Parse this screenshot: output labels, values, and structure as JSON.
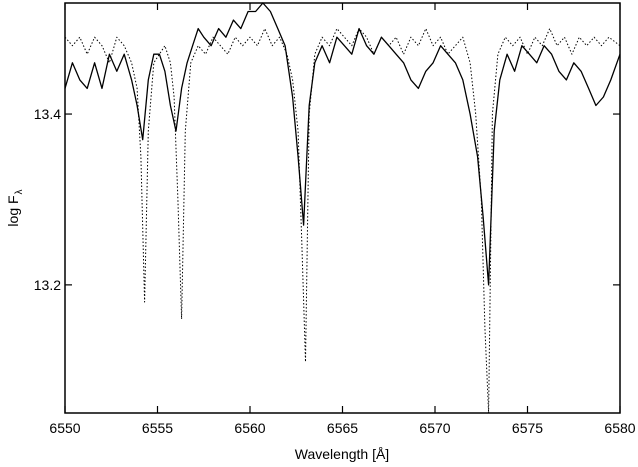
{
  "chart_data": {
    "type": "line",
    "title": "",
    "xlabel": "Wavelength [Å]",
    "ylabel_main": "log F",
    "ylabel_sub": "λ",
    "xlim": [
      6550,
      6580
    ],
    "ylim": [
      13.05,
      13.53
    ],
    "xticks": [
      6550,
      6555,
      6560,
      6565,
      6570,
      6575,
      6580
    ],
    "xtick_labels": [
      "6550",
      "6555",
      "6560",
      "6565",
      "6570",
      "6575",
      "6580"
    ],
    "yticks": [
      13.2,
      13.4
    ],
    "ytick_labels": [
      "13.2",
      "13.4"
    ],
    "grid": false,
    "legend": "none",
    "series": [
      {
        "style": "solid",
        "color": "#000000",
        "x": [
          6550.0,
          6550.4,
          6550.8,
          6551.2,
          6551.6,
          6552.0,
          6552.4,
          6552.8,
          6553.2,
          6553.6,
          6553.9,
          6554.2,
          6554.5,
          6554.8,
          6555.1,
          6555.4,
          6555.7,
          6556.0,
          6556.3,
          6556.6,
          6556.9,
          6557.2,
          6557.5,
          6557.9,
          6558.3,
          6558.7,
          6559.1,
          6559.5,
          6559.9,
          6560.3,
          6560.7,
          6561.1,
          6561.5,
          6561.9,
          6562.3,
          6562.6,
          6562.9,
          6563.2,
          6563.5,
          6563.9,
          6564.3,
          6564.7,
          6565.1,
          6565.5,
          6565.9,
          6566.3,
          6566.7,
          6567.1,
          6567.5,
          6567.9,
          6568.3,
          6568.7,
          6569.1,
          6569.5,
          6569.9,
          6570.3,
          6570.7,
          6571.1,
          6571.5,
          6571.9,
          6572.3,
          6572.6,
          6572.9,
          6573.2,
          6573.5,
          6573.9,
          6574.3,
          6574.7,
          6575.1,
          6575.5,
          6575.9,
          6576.3,
          6576.7,
          6577.1,
          6577.5,
          6577.9,
          6578.3,
          6578.7,
          6579.1,
          6579.5,
          6580.0
        ],
        "y": [
          13.43,
          13.46,
          13.44,
          13.43,
          13.46,
          13.43,
          13.47,
          13.45,
          13.47,
          13.44,
          13.41,
          13.37,
          13.44,
          13.47,
          13.47,
          13.45,
          13.41,
          13.38,
          13.43,
          13.46,
          13.48,
          13.5,
          13.49,
          13.48,
          13.5,
          13.49,
          13.51,
          13.5,
          13.52,
          13.52,
          13.53,
          13.52,
          13.5,
          13.48,
          13.42,
          13.35,
          13.27,
          13.41,
          13.46,
          13.48,
          13.46,
          13.49,
          13.48,
          13.47,
          13.5,
          13.48,
          13.47,
          13.49,
          13.48,
          13.47,
          13.46,
          13.44,
          13.43,
          13.45,
          13.46,
          13.48,
          13.47,
          13.46,
          13.44,
          13.4,
          13.35,
          13.28,
          13.2,
          13.38,
          13.44,
          13.47,
          13.45,
          13.48,
          13.47,
          13.46,
          13.48,
          13.47,
          13.45,
          13.44,
          13.46,
          13.45,
          13.43,
          13.41,
          13.42,
          13.44,
          13.47
        ]
      },
      {
        "style": "dotted",
        "color": "#000000",
        "x": [
          6550.0,
          6550.4,
          6550.8,
          6551.2,
          6551.6,
          6552.0,
          6552.4,
          6552.8,
          6553.2,
          6553.6,
          6553.9,
          6554.1,
          6554.3,
          6554.5,
          6554.8,
          6555.1,
          6555.4,
          6555.7,
          6555.9,
          6556.1,
          6556.3,
          6556.5,
          6556.8,
          6557.2,
          6557.6,
          6558.0,
          6558.4,
          6558.8,
          6559.2,
          6559.6,
          6560.0,
          6560.4,
          6560.8,
          6561.2,
          6561.6,
          6562.0,
          6562.3,
          6562.6,
          6562.8,
          6563.0,
          6563.2,
          6563.5,
          6563.9,
          6564.3,
          6564.7,
          6565.1,
          6565.5,
          6565.9,
          6566.3,
          6566.7,
          6567.1,
          6567.5,
          6567.9,
          6568.3,
          6568.7,
          6569.1,
          6569.5,
          6569.9,
          6570.3,
          6570.7,
          6571.1,
          6571.5,
          6571.9,
          6572.2,
          6572.5,
          6572.7,
          6572.9,
          6573.1,
          6573.4,
          6573.8,
          6574.2,
          6574.6,
          6575.0,
          6575.4,
          6575.8,
          6576.2,
          6576.6,
          6577.0,
          6577.4,
          6577.8,
          6578.2,
          6578.6,
          6579.0,
          6579.4,
          6580.0
        ],
        "y": [
          13.49,
          13.48,
          13.49,
          13.47,
          13.49,
          13.48,
          13.46,
          13.49,
          13.48,
          13.46,
          13.43,
          13.35,
          13.18,
          13.38,
          13.46,
          13.47,
          13.48,
          13.46,
          13.42,
          13.3,
          13.16,
          13.38,
          13.46,
          13.48,
          13.47,
          13.49,
          13.48,
          13.47,
          13.49,
          13.48,
          13.49,
          13.48,
          13.5,
          13.48,
          13.49,
          13.47,
          13.44,
          13.38,
          13.25,
          13.11,
          13.4,
          13.47,
          13.49,
          13.48,
          13.5,
          13.49,
          13.48,
          13.5,
          13.49,
          13.47,
          13.49,
          13.48,
          13.49,
          13.47,
          13.49,
          13.48,
          13.5,
          13.48,
          13.49,
          13.47,
          13.48,
          13.49,
          13.46,
          13.4,
          13.3,
          13.15,
          13.05,
          13.4,
          13.47,
          13.49,
          13.48,
          13.49,
          13.47,
          13.49,
          13.48,
          13.5,
          13.48,
          13.49,
          13.47,
          13.49,
          13.48,
          13.49,
          13.48,
          13.49,
          13.48
        ]
      }
    ]
  }
}
